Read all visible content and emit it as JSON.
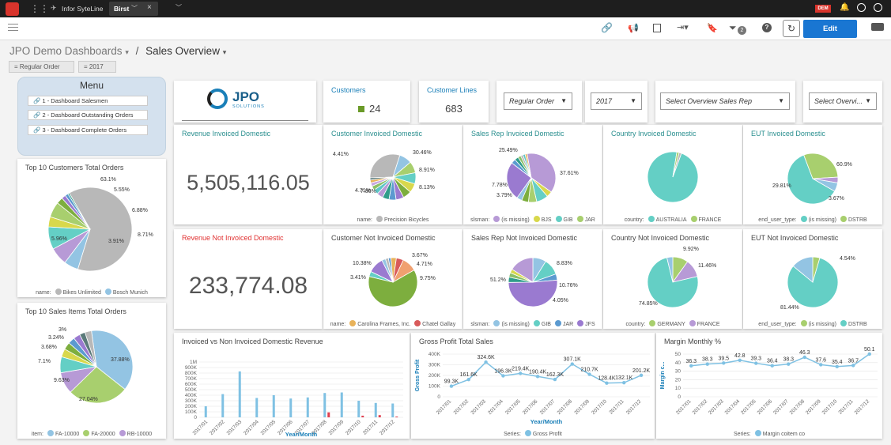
{
  "topbar": {
    "app": "Infor SyteLine",
    "tab": "Birst",
    "tab_close": "×",
    "badge": "DEM"
  },
  "toolbar": {
    "edit_label": "Edit",
    "filter_count": "2"
  },
  "breadcrumb": {
    "parent": "JPO Demo Dashboards",
    "separator": "/",
    "current": "Sales Overview"
  },
  "filters": {
    "order": "= Regular Order",
    "year": "= 2017"
  },
  "menu": {
    "title": "Menu",
    "items": [
      "1 - Dashboard Salesmen",
      "2 - Dashboard Outstanding Orders",
      "3 - Dashboard Complete Orders"
    ]
  },
  "logo": {
    "text": "JPO",
    "sub": "SOLUTIONS"
  },
  "kpis": {
    "customers_label": "Customers",
    "customers_value": "24",
    "customer_lines_label": "Customer Lines",
    "customer_lines_value": "683"
  },
  "selects": {
    "order": "Regular Order",
    "year": "2017",
    "salesrep": "Select Overview Sales Rep",
    "other": "Select Overvi..."
  },
  "revenue": {
    "invoiced_title": "Revenue Invoiced Domestic",
    "invoiced_value": "5,505,116.05",
    "not_invoiced_title": "Revenue Not Invoiced Domestic",
    "not_invoiced_value": "233,774.08"
  },
  "colors": {
    "accent": "#1976d2",
    "red": "#e03030",
    "teal": "#2a8f8f"
  },
  "chart_data": [
    {
      "id": "top10cust",
      "type": "pie",
      "title": "Top 10 Customers Total Orders",
      "legend_name": "name:",
      "legend": [
        "Bikes Unlimited",
        "Bosch Munich"
      ],
      "slices": [
        63.1,
        5.55,
        6.88,
        8.71,
        3.91,
        5.96,
        2.5,
        1.6,
        1.2,
        0.59
      ],
      "labels": [
        "63.1%",
        "5.55%",
        "6.88%",
        "8.71%",
        "3.91%",
        "5.96%"
      ]
    },
    {
      "id": "top10items",
      "type": "pie",
      "title": "Top 10 Sales Items Total Orders",
      "legend_name": "item:",
      "legend": [
        "FA-10000",
        "FA-20000",
        "RB-10000"
      ],
      "slices": [
        37.88,
        27.04,
        9.63,
        7.1,
        3.68,
        3.24,
        3,
        3,
        2.5,
        2.93
      ],
      "labels": [
        "37.88%",
        "27.04%",
        "9.63%",
        "7.1%",
        "3.68%",
        "3.24%",
        "3%"
      ]
    },
    {
      "id": "custinv",
      "type": "pie",
      "title": "Customer Invoiced Domestic",
      "legend_name": "name:",
      "legend": [
        "Precision Bicycles"
      ],
      "slices": [
        30.46,
        8.91,
        8.13,
        7.86,
        6.5,
        6,
        5.5,
        5,
        4.71,
        4.41,
        3.5,
        3,
        2.5,
        2.01,
        1.52
      ],
      "labels": [
        "30.46%",
        "8.91%",
        "8.13%",
        "7.86%",
        "4.71%",
        "4.41%"
      ]
    },
    {
      "id": "srinv",
      "type": "pie",
      "title": "Sales Rep Invoiced Domestic",
      "legend_name": "slsman:",
      "legend": [
        "(is missing)",
        "BJS",
        "GIB",
        "JAR"
      ],
      "slices": [
        37.61,
        3.79,
        7.78,
        5.5,
        4.5,
        3.5,
        25.49,
        3,
        2.5,
        2,
        1.5,
        1.5,
        1.32
      ],
      "labels": [
        "37.61%",
        "3.79%",
        "7.78%",
        "25.49%"
      ]
    },
    {
      "id": "ctryinv",
      "type": "pie",
      "title": "Country Invoiced Domestic",
      "legend_name": "country:",
      "legend": [
        "AUSTRALIA",
        "FRANCE"
      ],
      "slices": [
        97,
        1.5,
        1.5
      ],
      "labels": []
    },
    {
      "id": "eutinv",
      "type": "pie",
      "title": "EUT Invoiced Domestic",
      "legend_name": "end_user_type:",
      "legend": [
        "(is missing)",
        "DSTRB"
      ],
      "slices": [
        60.9,
        29.81,
        3.67,
        5.62
      ],
      "labels": [
        "60.9%",
        "29.81%",
        "3.67%"
      ]
    },
    {
      "id": "custnot",
      "type": "pie",
      "title": "Customer Not Invoiced Domestic",
      "legend_name": "name:",
      "legend": [
        "Carolina Frames, Inc.",
        "Chatel Gallay"
      ],
      "slices": [
        3.67,
        4.71,
        9.75,
        62,
        3.41,
        10.38,
        2.5,
        2,
        1.58
      ],
      "labels": [
        "3.67%",
        "4.71%",
        "9.75%",
        "3.41%",
        "10.38%"
      ]
    },
    {
      "id": "srnot",
      "type": "pie",
      "title": "Sales Rep Not Invoiced Domestic",
      "legend_name": "slsman:",
      "legend": [
        "(is missing)",
        "GIB",
        "JAR",
        "JFS"
      ],
      "slices": [
        8.83,
        10.76,
        4.05,
        51.2,
        3.5,
        3,
        2.5,
        16.16
      ],
      "labels": [
        "8.83%",
        "10.76%",
        "4.05%",
        "51.2%"
      ]
    },
    {
      "id": "ctrynot",
      "type": "pie",
      "title": "Country Not Invoiced Domestic",
      "legend_name": "country:",
      "legend": [
        "GERMANY",
        "FRANCE"
      ],
      "slices": [
        9.92,
        11.46,
        74.85,
        3.77
      ],
      "labels": [
        "9.92%",
        "11.46%",
        "74.85%"
      ]
    },
    {
      "id": "eutnot",
      "type": "pie",
      "title": "EUT Not Invoiced Domestic",
      "legend_name": "end_user_type:",
      "legend": [
        "(is missing)",
        "DSTRB"
      ],
      "slices": [
        4.54,
        81.44,
        14.02
      ],
      "labels": [
        "4.54%",
        "81.44%"
      ]
    },
    {
      "id": "invbar",
      "type": "bar",
      "title": "Invoiced vs Non Invoiced Domestic Revenue",
      "xlabel": "Year/Month",
      "categories": [
        "2017/01",
        "2017/02",
        "2017/03",
        "2017/04",
        "2017/05",
        "2017/06",
        "2017/07",
        "2017/08",
        "2017/09",
        "2017/10",
        "2017/11",
        "2017/12"
      ],
      "ylim": [
        0,
        1000000
      ],
      "yticks": [
        "0",
        "100K",
        "200K",
        "300K",
        "400K",
        "500K",
        "600K",
        "700K",
        "800K",
        "900K",
        "1M"
      ],
      "series": [
        {
          "values": [
            200000,
            420000,
            830000,
            350000,
            400000,
            340000,
            360000,
            440000,
            450000,
            300000,
            260000,
            250000
          ]
        },
        {
          "values": [
            0,
            0,
            0,
            0,
            0,
            0,
            0,
            90000,
            0,
            30000,
            40000,
            15000
          ]
        }
      ]
    },
    {
      "id": "gross",
      "type": "line",
      "title": "Gross Profit Total Sales",
      "ylabel": "Gross Profit",
      "xlabel": "Year/Month",
      "legend_name": "Series:",
      "legend": [
        "Gross Profit"
      ],
      "categories": [
        "2017/01",
        "2017/02",
        "2017/03",
        "2017/04",
        "2017/05",
        "2017/06",
        "2017/07",
        "2017/08",
        "2017/09",
        "2017/10",
        "2017/11",
        "2017/12"
      ],
      "ylim": [
        0,
        400000
      ],
      "yticks": [
        "0",
        "100K",
        "200K",
        "300K",
        "400K"
      ],
      "values": [
        99300,
        161600,
        324600,
        196300,
        219400,
        190400,
        162300,
        307100,
        210700,
        128400,
        132100,
        201200
      ],
      "labels": [
        "99.3K",
        "161.6K",
        "324.6K",
        "196.3K",
        "219.4K",
        "190.4K",
        "162.3K",
        "307.1K",
        "210.7K",
        "128.4K",
        "132.1K",
        "201.2K"
      ]
    },
    {
      "id": "margin",
      "type": "line",
      "title": "Margin Monthly %",
      "ylabel": "Margin c...",
      "legend_name": "Series:",
      "legend": [
        "Margin coitem co"
      ],
      "categories": [
        "2017/01",
        "2017/02",
        "2017/03",
        "2017/04",
        "2017/05",
        "2017/06",
        "2017/07",
        "2017/08",
        "2017/09",
        "2017/10",
        "2017/11",
        "2017/12"
      ],
      "ylim": [
        0,
        50
      ],
      "yticks": [
        "0",
        "10",
        "20",
        "30",
        "40",
        "50"
      ],
      "values": [
        36.3,
        38.3,
        39.5,
        42.8,
        39.3,
        36.4,
        38.3,
        46.3,
        37.6,
        35.4,
        36.7,
        50.1
      ],
      "labels": [
        "36.3",
        "38.3",
        "39.5",
        "42.8",
        "39.3",
        "36.4",
        "38.3",
        "46.3",
        "37.6",
        "35.4",
        "36.7",
        "50.1"
      ]
    }
  ]
}
